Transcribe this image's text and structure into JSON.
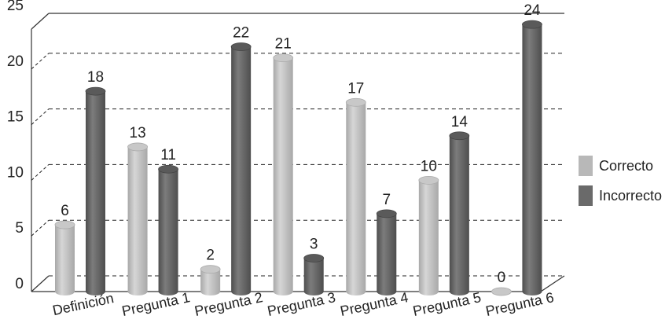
{
  "chart_data": {
    "type": "bar",
    "categories": [
      "Definición",
      "Pregunta 1",
      "Pregunta 2",
      "Pregunta 3",
      "Pregunta 4",
      "Pregunta 5",
      "Pregunta 6"
    ],
    "series": [
      {
        "name": "Correcto",
        "values": [
          6,
          13,
          2,
          21,
          17,
          10,
          0
        ],
        "color": "#b8b8b8"
      },
      {
        "name": "Incorrecto",
        "values": [
          18,
          11,
          22,
          3,
          7,
          14,
          24
        ],
        "color": "#6a6a6a"
      }
    ],
    "yticks": [
      0,
      5,
      10,
      15,
      20,
      25
    ],
    "ylim": [
      0,
      25
    ],
    "grid": true,
    "grid_style": "dashed",
    "bar_style": "3d-cylinder",
    "legend_position": "right",
    "title": "",
    "xlabel": "",
    "ylabel": ""
  }
}
